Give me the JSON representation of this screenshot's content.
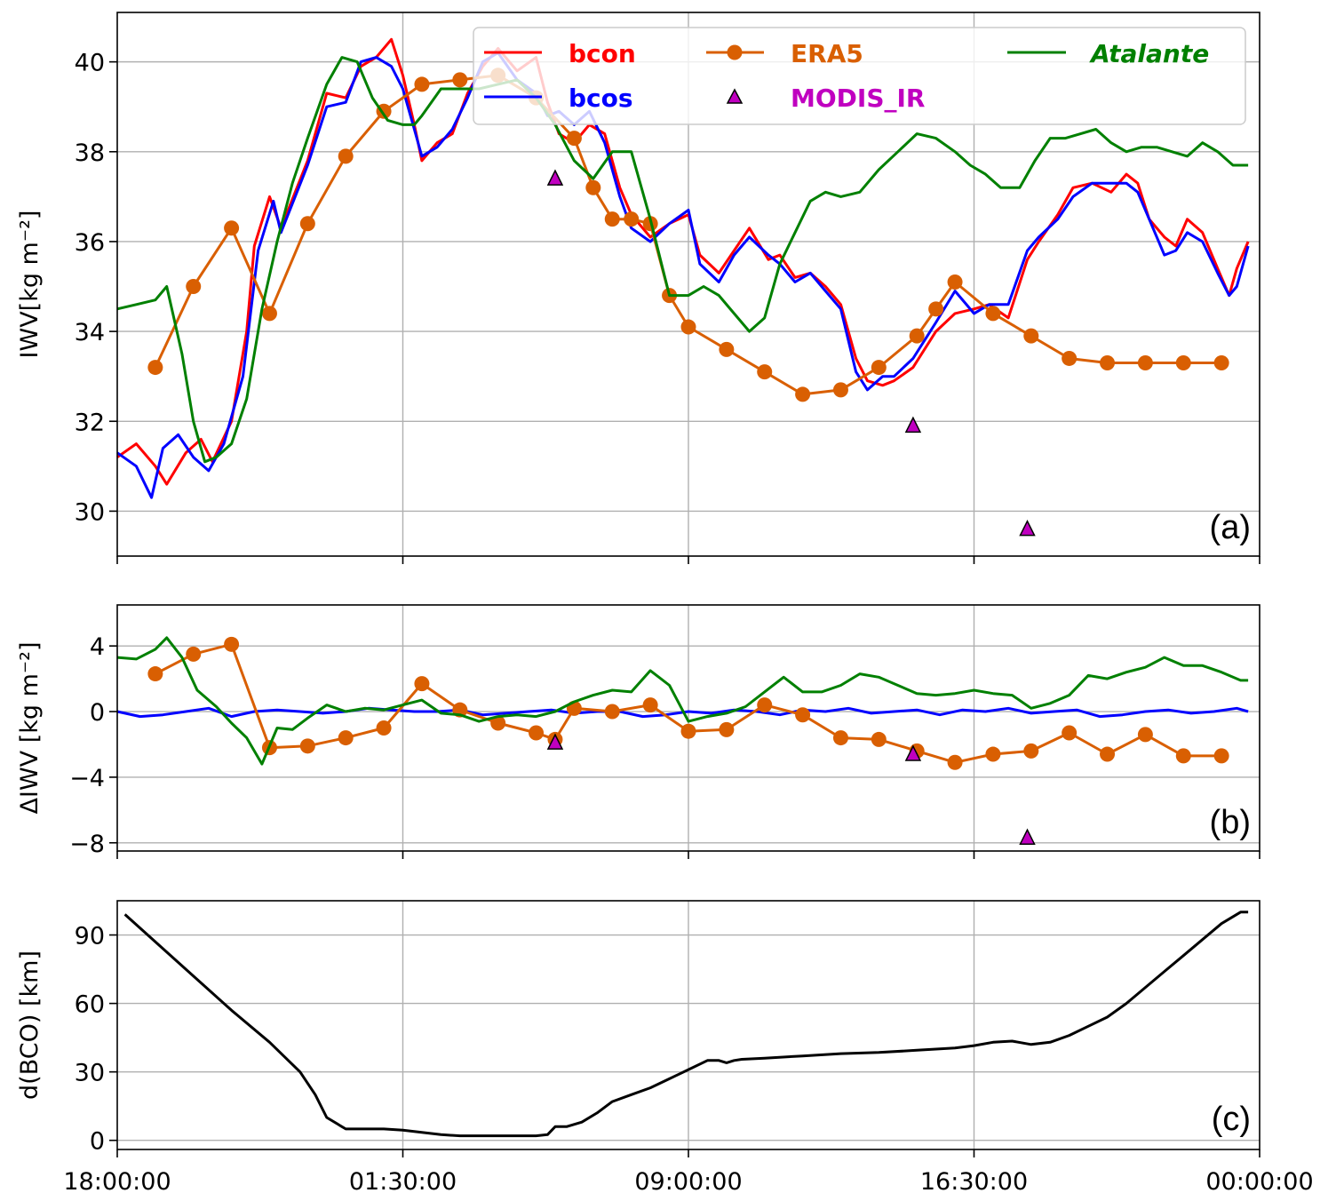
{
  "chart_data": [
    {
      "type": "line",
      "panel_label": "(a)",
      "ylabel": "IWV[kg m⁻²]",
      "ylim": [
        29.0,
        41.1
      ],
      "yticks": [
        "30",
        "32",
        "34",
        "36",
        "38",
        "40"
      ],
      "ytick_values": [
        30,
        32,
        34,
        36,
        38,
        40
      ],
      "xlim_hours": [
        0,
        30
      ],
      "xtick_hours": [
        0,
        7.5,
        15,
        22.5,
        30
      ],
      "grid": true,
      "legend": {
        "position": "top-right",
        "entries": [
          {
            "label": "bcon",
            "color": "#ff0000",
            "style": "bold"
          },
          {
            "label": "bcos",
            "color": "#0000ff",
            "style": "bold"
          },
          {
            "label": "ERA5",
            "color": "#d95f02",
            "style": "bold"
          },
          {
            "label": "MODIS_IR",
            "color": "#c000c0",
            "style": "bold"
          },
          {
            "label": "Atalante",
            "color": "#008000",
            "style": "bold-italic"
          }
        ]
      },
      "series": [
        {
          "name": "bcon",
          "color": "#ff0000",
          "x": [
            0,
            0.5,
            1.0,
            1.3,
            1.8,
            2.2,
            2.5,
            3.0,
            3.4,
            3.6,
            4.0,
            4.3,
            5.0,
            5.5,
            6.0,
            6.4,
            6.8,
            7.2,
            7.5,
            7.8,
            8.0,
            8.4,
            8.8,
            9.2,
            9.6,
            10.0,
            10.5,
            11.0,
            11.3,
            11.6,
            12.0,
            12.4,
            12.8,
            13.2,
            13.5,
            14.0,
            14.5,
            15.0,
            15.3,
            15.8,
            16.2,
            16.6,
            17.1,
            17.4,
            17.8,
            18.2,
            18.6,
            19.0,
            19.4,
            19.7,
            20.1,
            20.4,
            20.9,
            21.5,
            22.0,
            22.5,
            22.9,
            23.4,
            23.9,
            24.2,
            24.7,
            25.1,
            25.6,
            26.1,
            26.5,
            26.8,
            27.1,
            27.5,
            27.8,
            28.1,
            28.5,
            28.9,
            29.2,
            29.4,
            29.7
          ],
          "y": [
            31.2,
            31.5,
            31.0,
            30.6,
            31.3,
            31.6,
            31.1,
            32.0,
            34.0,
            35.9,
            37.0,
            36.3,
            37.8,
            39.3,
            39.2,
            39.9,
            40.1,
            40.5,
            39.7,
            38.6,
            37.8,
            38.2,
            38.4,
            39.3,
            39.9,
            40.3,
            39.8,
            40.1,
            39.1,
            38.4,
            38.2,
            38.6,
            38.4,
            37.2,
            36.6,
            36.1,
            36.4,
            36.6,
            35.7,
            35.3,
            35.8,
            36.3,
            35.6,
            35.7,
            35.2,
            35.3,
            35.0,
            34.6,
            33.4,
            32.9,
            32.8,
            32.9,
            33.2,
            34.0,
            34.4,
            34.5,
            34.6,
            34.3,
            35.6,
            36.0,
            36.6,
            37.2,
            37.3,
            37.1,
            37.5,
            37.3,
            36.5,
            36.1,
            35.9,
            36.5,
            36.2,
            35.4,
            34.8,
            35.4,
            36.0
          ]
        },
        {
          "name": "bcos",
          "color": "#0000ff",
          "x": [
            0,
            0.5,
            0.9,
            1.2,
            1.6,
            2.0,
            2.4,
            2.8,
            3.3,
            3.7,
            4.1,
            4.3,
            5.0,
            5.5,
            6.0,
            6.4,
            6.8,
            7.2,
            7.5,
            7.8,
            8.0,
            8.4,
            8.8,
            9.2,
            9.6,
            10.0,
            10.5,
            11.0,
            11.3,
            11.6,
            12.0,
            12.4,
            12.8,
            13.2,
            13.5,
            14.0,
            14.5,
            15.0,
            15.3,
            15.8,
            16.2,
            16.6,
            17.1,
            17.4,
            17.8,
            18.2,
            18.6,
            19.0,
            19.4,
            19.7,
            20.1,
            20.4,
            20.9,
            21.5,
            22.0,
            22.5,
            22.9,
            23.4,
            23.9,
            24.2,
            24.7,
            25.1,
            25.6,
            26.1,
            26.5,
            26.8,
            27.1,
            27.5,
            27.8,
            28.1,
            28.5,
            28.9,
            29.2,
            29.4,
            29.7
          ],
          "y": [
            31.3,
            31.0,
            30.3,
            31.4,
            31.7,
            31.2,
            30.9,
            31.5,
            33.0,
            35.8,
            36.9,
            36.2,
            37.7,
            39.0,
            39.1,
            40.0,
            40.1,
            39.9,
            39.4,
            38.5,
            37.9,
            38.1,
            38.5,
            39.2,
            40.0,
            40.2,
            39.6,
            39.3,
            38.8,
            38.9,
            38.6,
            38.9,
            38.2,
            37.0,
            36.3,
            36.0,
            36.4,
            36.7,
            35.5,
            35.1,
            35.7,
            36.1,
            35.7,
            35.5,
            35.1,
            35.3,
            34.9,
            34.5,
            33.1,
            32.7,
            33.0,
            33.0,
            33.4,
            34.2,
            34.9,
            34.4,
            34.6,
            34.6,
            35.8,
            36.1,
            36.5,
            37.0,
            37.3,
            37.3,
            37.3,
            37.1,
            36.5,
            35.7,
            35.8,
            36.2,
            36.0,
            35.3,
            34.8,
            35.0,
            35.9
          ]
        },
        {
          "name": "ERA5",
          "color": "#d95f02",
          "x": [
            1,
            2,
            3,
            4,
            5,
            6,
            7,
            8,
            9,
            10,
            11,
            12,
            12.5,
            13,
            13.5,
            14,
            14.5,
            15,
            16,
            17,
            18,
            19,
            20,
            21,
            21.5,
            22,
            23,
            24,
            25,
            26,
            27,
            28,
            29
          ],
          "y": [
            33.2,
            35.0,
            36.3,
            34.4,
            36.4,
            37.9,
            38.9,
            39.5,
            39.6,
            39.7,
            39.2,
            38.3,
            37.2,
            36.5,
            36.5,
            36.4,
            34.8,
            34.1,
            33.6,
            33.1,
            32.6,
            32.7,
            33.2,
            33.9,
            34.5,
            35.1,
            34.4,
            33.9,
            33.4,
            33.3,
            33.3,
            33.3,
            33.3
          ],
          "marker": "circle"
        },
        {
          "name": "Atalante",
          "color": "#008000",
          "x": [
            0,
            0.5,
            1.0,
            1.3,
            1.7,
            2.0,
            2.3,
            2.6,
            3.0,
            3.4,
            3.8,
            4.2,
            4.6,
            5.0,
            5.5,
            5.9,
            6.3,
            6.7,
            7.1,
            7.5,
            7.8,
            8.0,
            8.5,
            9.0,
            9.5,
            10.0,
            10.5,
            11.0,
            11.5,
            12.0,
            12.5,
            13.0,
            13.5,
            14.0,
            14.5,
            15.0,
            15.4,
            15.8,
            16.2,
            16.6,
            17.0,
            17.4,
            17.8,
            18.2,
            18.6,
            19.0,
            19.5,
            20.0,
            20.5,
            21.0,
            21.5,
            22.0,
            22.4,
            22.8,
            23.2,
            23.7,
            24.1,
            24.5,
            24.9,
            25.3,
            25.7,
            26.1,
            26.5,
            26.9,
            27.3,
            27.7,
            28.1,
            28.5,
            28.9,
            29.3,
            29.7
          ],
          "y": [
            34.5,
            34.6,
            34.7,
            35.0,
            33.5,
            32.0,
            31.1,
            31.2,
            31.5,
            32.5,
            34.5,
            36.0,
            37.3,
            38.3,
            39.5,
            40.1,
            40.0,
            39.2,
            38.7,
            38.6,
            38.6,
            38.8,
            39.4,
            39.4,
            39.4,
            39.5,
            39.6,
            39.2,
            38.6,
            37.8,
            37.4,
            38.0,
            38.0,
            36.5,
            34.8,
            34.8,
            35.0,
            34.8,
            34.4,
            34.0,
            34.3,
            35.5,
            36.2,
            36.9,
            37.1,
            37.0,
            37.1,
            37.6,
            38.0,
            38.4,
            38.3,
            38.0,
            37.7,
            37.5,
            37.2,
            37.2,
            37.8,
            38.3,
            38.3,
            38.4,
            38.5,
            38.2,
            38.0,
            38.1,
            38.1,
            38.0,
            37.9,
            38.2,
            38.0,
            37.7,
            37.7
          ],
          "marker": "none"
        },
        {
          "name": "MODIS_IR",
          "color": "#c000c0",
          "x": [
            11.5,
            20.9,
            23.9
          ],
          "y": [
            37.4,
            31.9,
            29.6
          ],
          "marker": "triangle"
        }
      ]
    },
    {
      "type": "line",
      "panel_label": "(b)",
      "ylabel": "ΔIWV [kg m⁻²]",
      "ylim": [
        -8.5,
        6.5
      ],
      "yticks": [
        "4",
        "0",
        "−4",
        "−8"
      ],
      "ytick_values": [
        4,
        0,
        -4,
        -8
      ],
      "xlim_hours": [
        0,
        30
      ],
      "grid": true,
      "series": [
        {
          "name": "bcos",
          "color": "#0000ff",
          "x": [
            0,
            0.6,
            1.2,
            1.8,
            2.4,
            3.0,
            3.6,
            4.2,
            4.8,
            5.4,
            6.0,
            6.6,
            7.2,
            7.8,
            8.4,
            9.0,
            9.6,
            10.2,
            10.8,
            11.4,
            12.0,
            12.6,
            13.2,
            13.8,
            14.4,
            15.0,
            15.6,
            16.2,
            16.8,
            17.4,
            18.0,
            18.6,
            19.2,
            19.8,
            20.4,
            21.0,
            21.6,
            22.2,
            22.8,
            23.4,
            24.0,
            24.6,
            25.2,
            25.8,
            26.4,
            27.0,
            27.6,
            28.2,
            28.8,
            29.4,
            29.7
          ],
          "y": [
            0.0,
            -0.3,
            -0.2,
            0.0,
            0.2,
            -0.3,
            0.0,
            0.1,
            0.0,
            -0.1,
            0.0,
            0.2,
            0.1,
            0.0,
            0.0,
            0.1,
            -0.2,
            -0.1,
            0.0,
            0.1,
            -0.1,
            0.0,
            0.0,
            -0.3,
            -0.2,
            0.0,
            -0.1,
            0.1,
            0.0,
            -0.2,
            0.1,
            0.0,
            0.2,
            -0.1,
            0.0,
            0.1,
            -0.2,
            0.1,
            0.0,
            0.2,
            -0.1,
            0.0,
            0.1,
            -0.3,
            -0.2,
            0.0,
            0.1,
            -0.1,
            0.0,
            0.2,
            0.0
          ]
        },
        {
          "name": "ERA5",
          "color": "#d95f02",
          "x": [
            1,
            2,
            3,
            4,
            5,
            6,
            7,
            8,
            9,
            10,
            11,
            11.5,
            12,
            13,
            14,
            15,
            16,
            17,
            18,
            19,
            20,
            21,
            22,
            23,
            24,
            25,
            26,
            27,
            28,
            29
          ],
          "y": [
            2.3,
            3.5,
            4.1,
            -2.2,
            -2.1,
            -1.6,
            -1.0,
            1.7,
            0.1,
            -0.7,
            -1.3,
            -1.7,
            0.2,
            0.0,
            0.4,
            -1.2,
            -1.1,
            0.4,
            -0.2,
            -1.6,
            -1.7,
            -2.4,
            -3.1,
            -2.6,
            -2.4,
            -1.3,
            -2.6,
            -1.4,
            -2.7,
            -2.7
          ],
          "marker": "circle"
        },
        {
          "name": "Atalante",
          "color": "#008000",
          "x": [
            0,
            0.5,
            1.0,
            1.3,
            1.7,
            2.1,
            2.6,
            3.0,
            3.4,
            3.8,
            4.2,
            4.6,
            5.0,
            5.5,
            6.0,
            6.5,
            7.0,
            7.5,
            8.0,
            8.5,
            9.0,
            9.5,
            10.0,
            10.5,
            11.0,
            11.5,
            12.0,
            12.5,
            13.0,
            13.5,
            14.0,
            14.5,
            15.0,
            15.5,
            16.0,
            16.5,
            17.0,
            17.5,
            18.0,
            18.5,
            19.0,
            19.5,
            20.0,
            20.5,
            21.0,
            21.5,
            22.0,
            22.5,
            23.0,
            23.5,
            24.0,
            24.5,
            25.0,
            25.5,
            26.0,
            26.5,
            27.0,
            27.5,
            28.0,
            28.5,
            29.0,
            29.5,
            29.7
          ],
          "y": [
            3.3,
            3.2,
            3.8,
            4.5,
            3.3,
            1.3,
            0.3,
            -0.7,
            -1.6,
            -3.2,
            -1.0,
            -1.1,
            -0.4,
            0.4,
            0.0,
            0.2,
            0.1,
            0.4,
            0.7,
            -0.1,
            -0.2,
            -0.6,
            -0.3,
            -0.2,
            -0.3,
            0.0,
            0.6,
            1.0,
            1.3,
            1.2,
            2.5,
            1.6,
            -0.6,
            -0.3,
            -0.1,
            0.3,
            1.2,
            2.1,
            1.2,
            1.2,
            1.6,
            2.3,
            2.1,
            1.6,
            1.1,
            1.0,
            1.1,
            1.3,
            1.1,
            1.0,
            0.2,
            0.5,
            1.0,
            2.2,
            2.0,
            2.4,
            2.7,
            3.3,
            2.8,
            2.8,
            2.4,
            1.9,
            1.9
          ],
          "marker": "none"
        },
        {
          "name": "MODIS_IR",
          "color": "#c000c0",
          "x": [
            11.5,
            20.9,
            23.9
          ],
          "y": [
            -1.9,
            -2.6,
            -7.7
          ],
          "marker": "triangle"
        }
      ]
    },
    {
      "type": "line",
      "panel_label": "(c)",
      "ylabel": "d(BCO) [km]",
      "ylim": [
        -4,
        105
      ],
      "yticks": [
        "0",
        "30",
        "60",
        "90"
      ],
      "ytick_values": [
        0,
        30,
        60,
        90
      ],
      "xlim_hours": [
        0,
        30
      ],
      "xlabel": "",
      "xtick_labels": [
        "18:00:00",
        "01:30:00",
        "09:00:00",
        "16:30:00",
        "00:00:00"
      ],
      "grid": true,
      "series": [
        {
          "name": "",
          "color": "#000000",
          "x": [
            0.2,
            1.0,
            2.0,
            3.0,
            4.0,
            4.8,
            5.2,
            5.5,
            6.0,
            6.5,
            7.0,
            7.5,
            8.0,
            8.5,
            9.0,
            10.0,
            11.0,
            11.3,
            11.5,
            11.8,
            12.2,
            12.6,
            13.0,
            13.5,
            14.0,
            14.5,
            15.0,
            15.5,
            15.8,
            16.0,
            16.2,
            16.4,
            17.0,
            18.0,
            19.0,
            20.0,
            21.0,
            22.0,
            22.5,
            23.0,
            23.5,
            24.0,
            24.5,
            25.0,
            25.5,
            26.0,
            26.5,
            27.0,
            27.5,
            28.0,
            28.5,
            29.0,
            29.5,
            29.7
          ],
          "y": [
            99,
            87,
            72,
            57,
            43,
            30,
            20,
            10,
            5,
            5,
            5,
            4.5,
            3.5,
            2.5,
            2,
            2,
            2,
            2.5,
            6,
            6,
            8,
            12,
            17,
            20,
            23,
            27,
            31,
            35,
            35,
            34,
            35,
            35.5,
            36,
            37,
            38,
            38.5,
            39.5,
            40.5,
            41.5,
            43,
            43.5,
            42,
            43,
            46,
            50,
            54,
            60,
            67,
            74,
            81,
            88,
            95,
            100,
            100
          ]
        }
      ]
    }
  ]
}
